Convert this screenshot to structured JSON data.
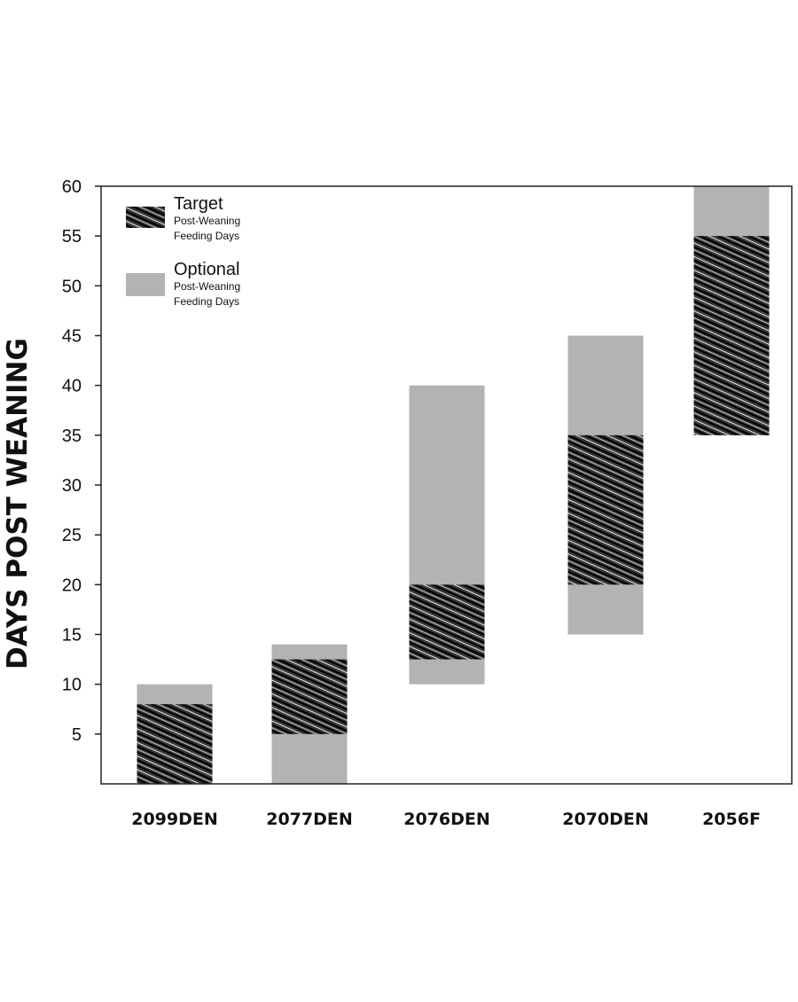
{
  "chart_data": {
    "type": "bar",
    "subtype": "floating-range",
    "ylabel": "DAYS POST WEANING",
    "xlabel": "",
    "ylim": [
      0,
      60
    ],
    "yticks": [
      5,
      10,
      15,
      20,
      25,
      30,
      35,
      40,
      45,
      50,
      55,
      60
    ],
    "categories": [
      "2099DEN",
      "2077DEN",
      "2076DEN",
      "2070DEN",
      "2056F"
    ],
    "series": [
      {
        "name": "Optional",
        "legend_detail": [
          "Post-Weaning",
          "Feeding Days"
        ],
        "color": "#b3b3b3",
        "ranges": [
          [
            0,
            10
          ],
          [
            0,
            14
          ],
          [
            10,
            40
          ],
          [
            15,
            45
          ],
          [
            35,
            60
          ]
        ]
      },
      {
        "name": "Target",
        "legend_detail": [
          "Post-Weaning",
          "Feeding Days"
        ],
        "color": "#1a1a1a",
        "pattern": "scribble-hatch",
        "ranges": [
          [
            0,
            8
          ],
          [
            5,
            12.5
          ],
          [
            12.5,
            20
          ],
          [
            20,
            35
          ],
          [
            35,
            55
          ]
        ]
      }
    ],
    "legend_position": "top-left",
    "grid": false
  }
}
